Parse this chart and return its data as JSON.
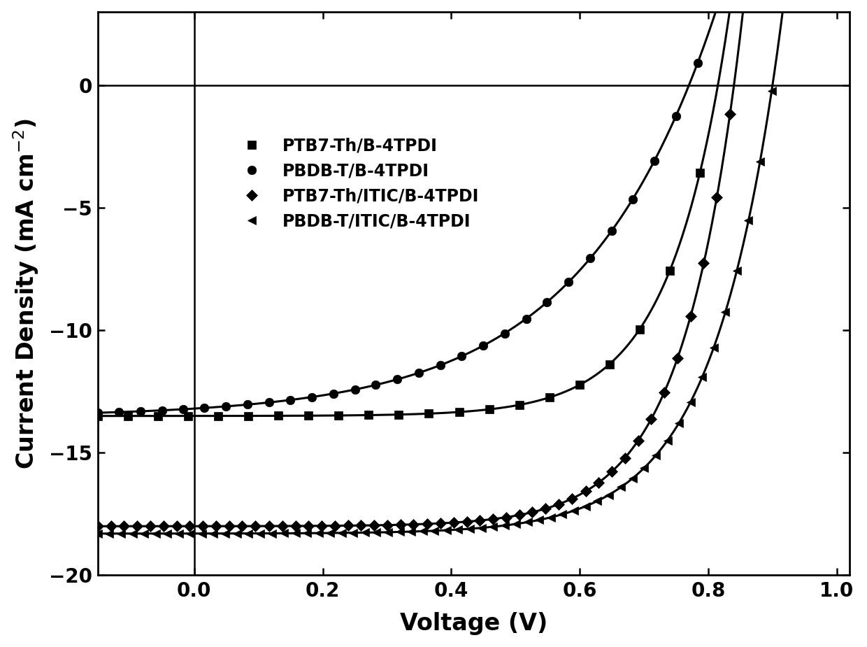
{
  "title": "",
  "xlabel": "Voltage (V)",
  "ylabel": "Current Density (mA cm$^{-2}$)",
  "xlim": [
    -0.15,
    1.02
  ],
  "ylim": [
    -20,
    3
  ],
  "xticks": [
    0.0,
    0.2,
    0.4,
    0.6,
    0.8,
    1.0
  ],
  "yticks": [
    0,
    -5,
    -10,
    -15,
    -20
  ],
  "series": [
    {
      "label": "PTB7-Th/B-4TPDI",
      "marker": "s",
      "Jsc": -13.5,
      "Voc": 0.815,
      "n": 3.5,
      "n_markers": 22,
      "color": "black"
    },
    {
      "label": "PBDB-T/B-4TPDI",
      "marker": "o",
      "Jsc": -13.2,
      "Voc": 0.77,
      "n": 8.0,
      "n_markers": 30,
      "color": "black"
    },
    {
      "label": "PTB7-Th/ITIC/B-4TPDI",
      "marker": "D",
      "Jsc": -18.0,
      "Voc": 0.84,
      "n": 3.5,
      "n_markers": 50,
      "color": "black"
    },
    {
      "label": "PBDB-T/ITIC/B-4TPDI",
      "marker": "<",
      "Jsc": -18.3,
      "Voc": 0.9,
      "n": 4.0,
      "n_markers": 60,
      "color": "black"
    }
  ],
  "background_color": "white",
  "line_color": "black",
  "linewidth": 2.2,
  "markersize_sq": 9,
  "markersize_circ": 9,
  "markersize_dia": 8,
  "markersize_tri": 8,
  "legend_fontsize": 17,
  "axis_fontsize": 24,
  "tick_fontsize": 20
}
